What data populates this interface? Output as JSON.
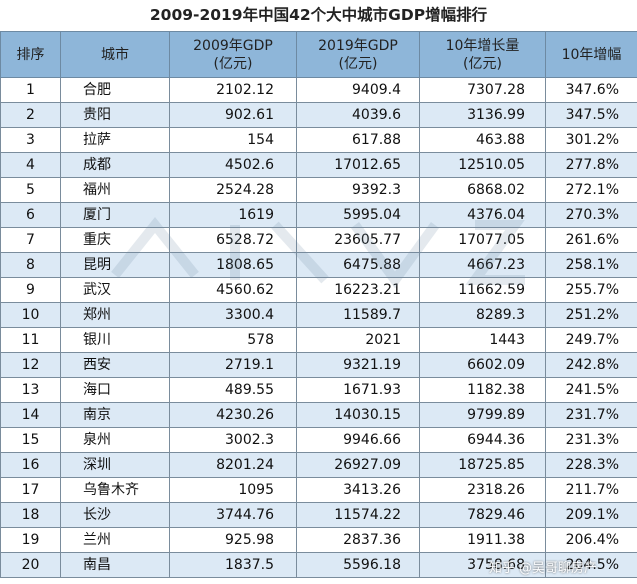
{
  "title": "2009-2019年中国42个大中城市GDP增幅排行",
  "headers": {
    "rank": "排序",
    "city": "城市",
    "gdp2009_line1": "2009年GDP",
    "gdp2009_line2": "(亿元)",
    "gdp2019_line1": "2019年GDP",
    "gdp2019_line2": "(亿元)",
    "growth_line1": "10年增长量",
    "growth_line2": "(亿元)",
    "rate": "10年增幅"
  },
  "rows": [
    {
      "rank": "1",
      "city": "合肥",
      "gdp2009": "2102.12",
      "gdp2019": "9409.4",
      "growth": "7307.28",
      "rate": "347.6%"
    },
    {
      "rank": "2",
      "city": "贵阳",
      "gdp2009": "902.61",
      "gdp2019": "4039.6",
      "growth": "3136.99",
      "rate": "347.5%"
    },
    {
      "rank": "3",
      "city": "拉萨",
      "gdp2009": "154",
      "gdp2019": "617.88",
      "growth": "463.88",
      "rate": "301.2%"
    },
    {
      "rank": "4",
      "city": "成都",
      "gdp2009": "4502.6",
      "gdp2019": "17012.65",
      "growth": "12510.05",
      "rate": "277.8%"
    },
    {
      "rank": "5",
      "city": "福州",
      "gdp2009": "2524.28",
      "gdp2019": "9392.3",
      "growth": "6868.02",
      "rate": "272.1%"
    },
    {
      "rank": "6",
      "city": "厦门",
      "gdp2009": "1619",
      "gdp2019": "5995.04",
      "growth": "4376.04",
      "rate": "270.3%"
    },
    {
      "rank": "7",
      "city": "重庆",
      "gdp2009": "6528.72",
      "gdp2019": "23605.77",
      "growth": "17077.05",
      "rate": "261.6%"
    },
    {
      "rank": "8",
      "city": "昆明",
      "gdp2009": "1808.65",
      "gdp2019": "6475.88",
      "growth": "4667.23",
      "rate": "258.1%"
    },
    {
      "rank": "9",
      "city": "武汉",
      "gdp2009": "4560.62",
      "gdp2019": "16223.21",
      "growth": "11662.59",
      "rate": "255.7%"
    },
    {
      "rank": "10",
      "city": "郑州",
      "gdp2009": "3300.4",
      "gdp2019": "11589.7",
      "growth": "8289.3",
      "rate": "251.2%"
    },
    {
      "rank": "11",
      "city": "银川",
      "gdp2009": "578",
      "gdp2019": "2021",
      "growth": "1443",
      "rate": "249.7%"
    },
    {
      "rank": "12",
      "city": "西安",
      "gdp2009": "2719.1",
      "gdp2019": "9321.19",
      "growth": "6602.09",
      "rate": "242.8%"
    },
    {
      "rank": "13",
      "city": "海口",
      "gdp2009": "489.55",
      "gdp2019": "1671.93",
      "growth": "1182.38",
      "rate": "241.5%"
    },
    {
      "rank": "14",
      "city": "南京",
      "gdp2009": "4230.26",
      "gdp2019": "14030.15",
      "growth": "9799.89",
      "rate": "231.7%"
    },
    {
      "rank": "15",
      "city": "泉州",
      "gdp2009": "3002.3",
      "gdp2019": "9946.66",
      "growth": "6944.36",
      "rate": "231.3%"
    },
    {
      "rank": "16",
      "city": "深圳",
      "gdp2009": "8201.24",
      "gdp2019": "26927.09",
      "growth": "18725.85",
      "rate": "228.3%"
    },
    {
      "rank": "17",
      "city": "乌鲁木齐",
      "gdp2009": "1095",
      "gdp2019": "3413.26",
      "growth": "2318.26",
      "rate": "211.7%"
    },
    {
      "rank": "18",
      "city": "长沙",
      "gdp2009": "3744.76",
      "gdp2019": "11574.22",
      "growth": "7829.46",
      "rate": "209.1%"
    },
    {
      "rank": "19",
      "city": "兰州",
      "gdp2009": "925.98",
      "gdp2019": "2837.36",
      "growth": "1911.38",
      "rate": "206.4%"
    },
    {
      "rank": "20",
      "city": "南昌",
      "gdp2009": "1837.5",
      "gdp2019": "5596.18",
      "growth": "3758.68",
      "rate": "204.5%"
    }
  ],
  "watermark": "知乎 @吴哥聊房产"
}
